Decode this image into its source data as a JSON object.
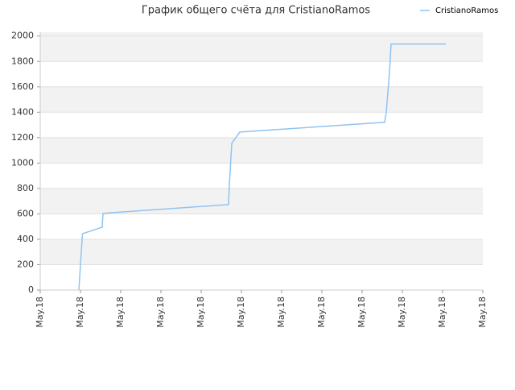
{
  "chart_data": {
    "type": "line",
    "title": "График общего счёта для CristianoRamos",
    "legend_position": "top-right",
    "grid": true,
    "xlim": [
      0,
      11
    ],
    "xticks": [
      {
        "value": 0,
        "label": "May.18"
      },
      {
        "value": 1,
        "label": "May.18"
      },
      {
        "value": 2,
        "label": "May.18"
      },
      {
        "value": 3,
        "label": "May.18"
      },
      {
        "value": 4,
        "label": "May.18"
      },
      {
        "value": 5,
        "label": "May.18"
      },
      {
        "value": 6,
        "label": "May.18"
      },
      {
        "value": 7,
        "label": "May.18"
      },
      {
        "value": 8,
        "label": "May.18"
      },
      {
        "value": 9,
        "label": "May.18"
      },
      {
        "value": 10,
        "label": "May.18"
      },
      {
        "value": 11,
        "label": "May.18"
      }
    ],
    "ylim": [
      0,
      2030
    ],
    "yticks": [
      0,
      200,
      400,
      600,
      800,
      1000,
      1200,
      1400,
      1600,
      1800,
      2000
    ],
    "x": [
      0.96,
      1.05,
      1.54,
      1.56,
      1.8,
      4.68,
      4.7,
      4.76,
      4.96,
      8.56,
      8.6,
      8.68,
      8.72,
      10.08
    ],
    "series": [
      {
        "name": "CristianoRamos",
        "color": "#90c4f0",
        "values": [
          0,
          444,
          495,
          603,
          610,
          673,
          825,
          1156,
          1244,
          1321,
          1397,
          1714,
          1937,
          1937
        ]
      }
    ]
  }
}
